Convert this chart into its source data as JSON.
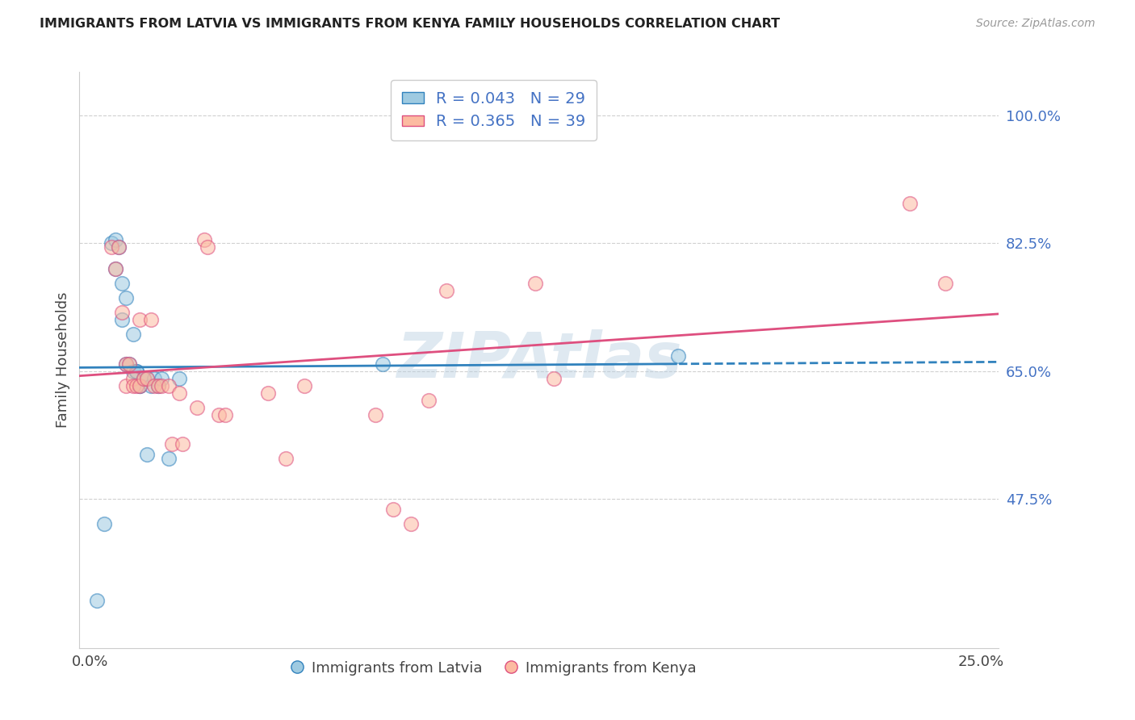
{
  "title": "IMMIGRANTS FROM LATVIA VS IMMIGRANTS FROM KENYA FAMILY HOUSEHOLDS CORRELATION CHART",
  "source": "Source: ZipAtlas.com",
  "ylabel": "Family Households",
  "ytick_labels": [
    "100.0%",
    "82.5%",
    "65.0%",
    "47.5%"
  ],
  "ytick_values": [
    1.0,
    0.825,
    0.65,
    0.475
  ],
  "xtick_labels": [
    "0.0%",
    "25.0%"
  ],
  "xtick_values": [
    0.0,
    0.25
  ],
  "xlim": [
    -0.003,
    0.255
  ],
  "ylim": [
    0.27,
    1.06
  ],
  "legend_r_latvia": "R = 0.043",
  "legend_n_latvia": "N = 29",
  "legend_r_kenya": "R = 0.365",
  "legend_n_kenya": "N = 39",
  "watermark": "ZIPAtlas",
  "latvia_scatter_color": "#9ecae1",
  "kenya_scatter_color": "#fcbba1",
  "latvia_line_color": "#3182bd",
  "kenya_line_color": "#de4f7f",
  "text_blue": "#4472c4",
  "title_color": "#222222",
  "source_color": "#999999",
  "grid_color": "#d0d0d0",
  "axis_color": "#cccccc",
  "latvia_x": [
    0.002,
    0.004,
    0.006,
    0.007,
    0.007,
    0.008,
    0.009,
    0.009,
    0.01,
    0.01,
    0.011,
    0.012,
    0.012,
    0.013,
    0.013,
    0.014,
    0.014,
    0.015,
    0.015,
    0.016,
    0.016,
    0.017,
    0.018,
    0.019,
    0.02,
    0.022,
    0.025,
    0.082,
    0.165
  ],
  "latvia_y": [
    0.335,
    0.44,
    0.825,
    0.83,
    0.79,
    0.82,
    0.77,
    0.72,
    0.75,
    0.66,
    0.66,
    0.7,
    0.65,
    0.65,
    0.65,
    0.63,
    0.63,
    0.64,
    0.64,
    0.64,
    0.535,
    0.63,
    0.64,
    0.63,
    0.64,
    0.53,
    0.64,
    0.66,
    0.67
  ],
  "kenya_x": [
    0.006,
    0.007,
    0.008,
    0.009,
    0.01,
    0.01,
    0.011,
    0.012,
    0.012,
    0.013,
    0.014,
    0.014,
    0.015,
    0.016,
    0.017,
    0.018,
    0.019,
    0.02,
    0.022,
    0.023,
    0.025,
    0.026,
    0.03,
    0.032,
    0.033,
    0.036,
    0.038,
    0.05,
    0.055,
    0.06,
    0.08,
    0.085,
    0.09,
    0.095,
    0.1,
    0.125,
    0.13,
    0.23,
    0.24
  ],
  "kenya_y": [
    0.82,
    0.79,
    0.82,
    0.73,
    0.66,
    0.63,
    0.66,
    0.64,
    0.63,
    0.63,
    0.63,
    0.72,
    0.64,
    0.64,
    0.72,
    0.63,
    0.63,
    0.63,
    0.63,
    0.55,
    0.62,
    0.55,
    0.6,
    0.83,
    0.82,
    0.59,
    0.59,
    0.62,
    0.53,
    0.63,
    0.59,
    0.46,
    0.44,
    0.61,
    0.76,
    0.77,
    0.64,
    0.88,
    0.77
  ]
}
